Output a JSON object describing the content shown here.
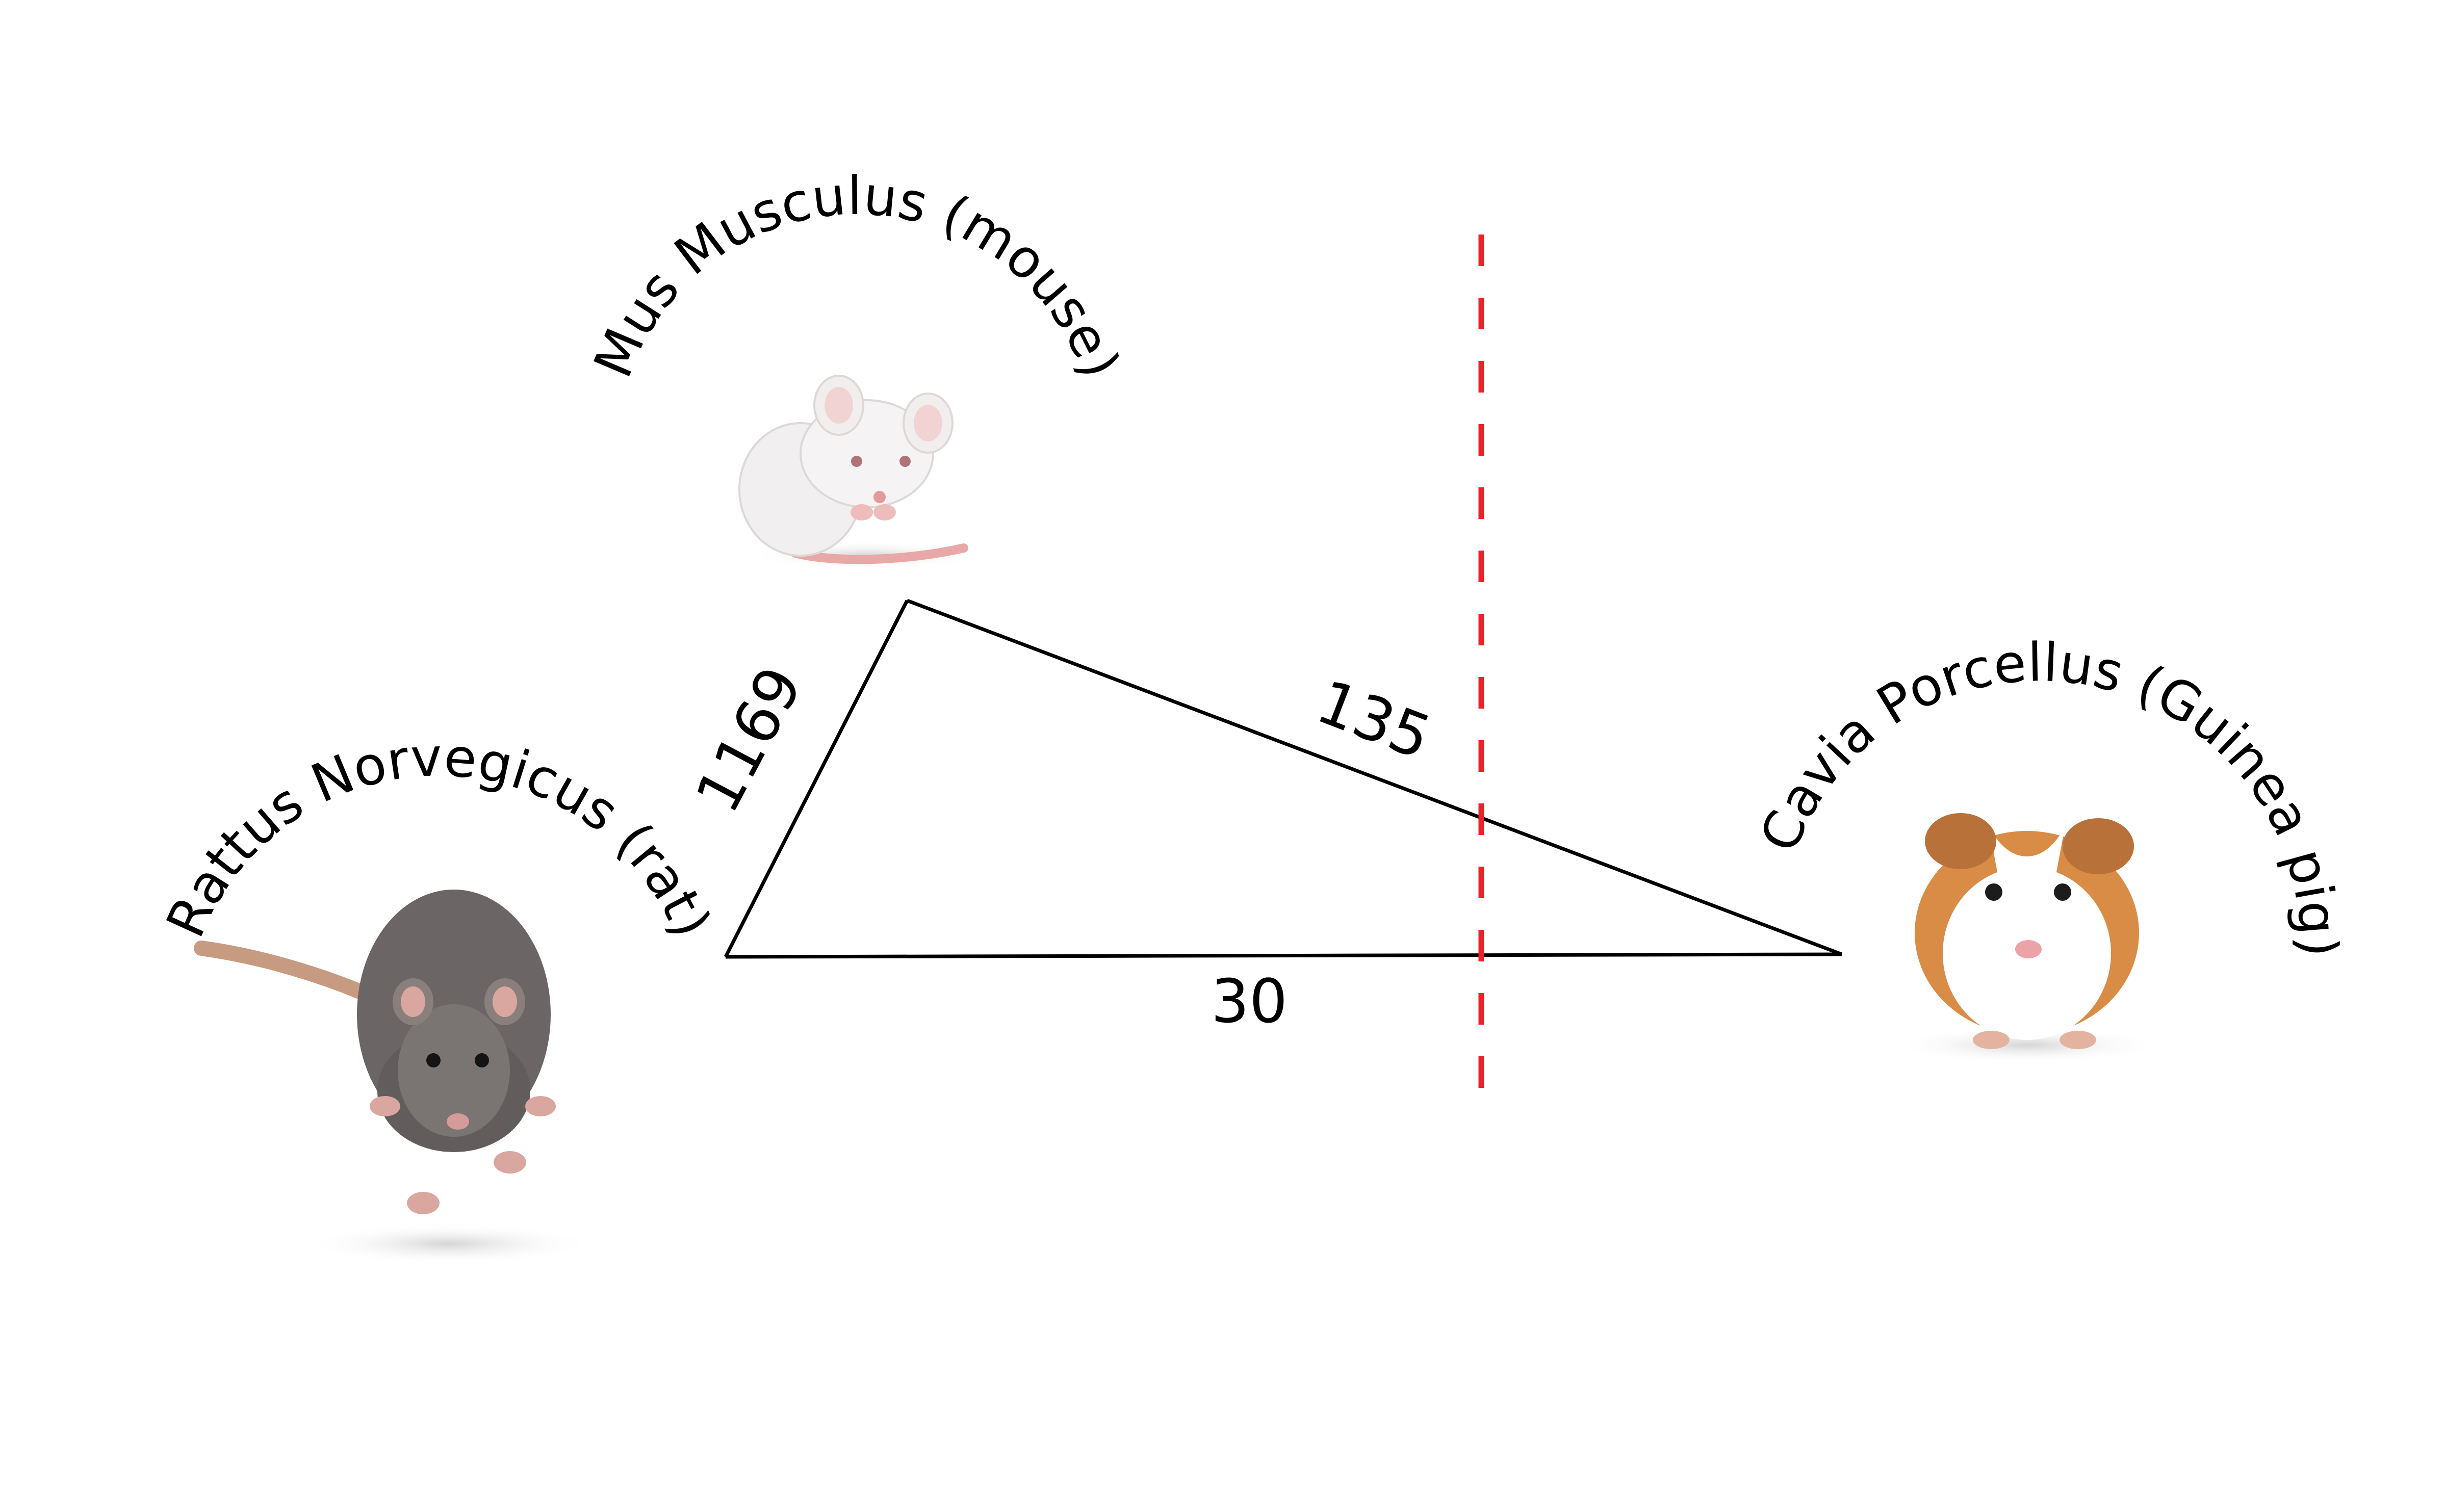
{
  "diagram": {
    "species": {
      "rat": {
        "label": "Rattus Norvegicus (rat)"
      },
      "mouse": {
        "label": "Mus Musculus (mouse)"
      },
      "guinea_pig": {
        "label": "Cavia Porcellus (Guinea pig)"
      }
    },
    "edges": {
      "rat_mouse": {
        "label": "1169"
      },
      "mouse_guinea_pig": {
        "label": "135"
      },
      "rat_guinea_pig": {
        "label": "30"
      }
    },
    "colors": {
      "triangle": "#000000",
      "divider": "#e8242a",
      "rat_fur": "#6b6665",
      "mouse_fur": "#f1efef",
      "guinea_pig_fur": "#d88c45",
      "pink": "#e8a8a8"
    },
    "icons": [
      "rat-image",
      "mouse-image",
      "guinea-pig-image"
    ]
  }
}
